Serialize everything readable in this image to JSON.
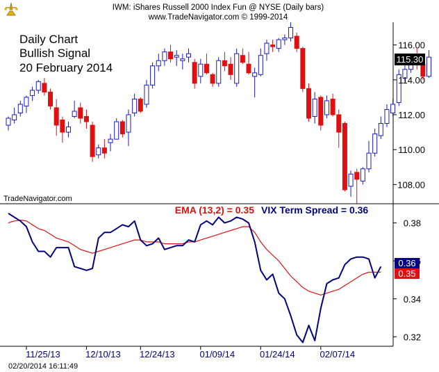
{
  "header": {
    "title": "IWM:  iShares Russell 2000 Index Fun @ NYSE  (Daily bars)",
    "copyright": "www.TradeNavigator.com © 1999-2014"
  },
  "annotations": {
    "line1": "Daily Chart",
    "line2": "Bullish Signal",
    "line3": "20 February 2014",
    "watermark": "TradeNavigator.com",
    "timestamp": "02/20/2014 16:11:49"
  },
  "indicator_labels": {
    "ema": "EMA (13,2) = 0.35",
    "vix": "VIX Term Spread = 0.36"
  },
  "colors": {
    "up": "#1a1acc",
    "down": "#dd1111",
    "vix_line": "#000080",
    "ema_line": "#dd1111",
    "last_price_box": "#000000"
  },
  "chart_data": [
    {
      "type": "candlestick",
      "title": "IWM:  iShares Russell 2000 Index Fun @ NYSE  (Daily bars)",
      "ylim": [
        106.9,
        117.3
      ],
      "y_ticks": [
        108.0,
        110.0,
        112.0,
        114.0,
        116.0
      ],
      "y_tick_labels": [
        "108.00",
        "110.00",
        "112.00",
        "114.00",
        "116.00"
      ],
      "last_value": 115.3,
      "last_value_label": "115.30",
      "candles": [
        {
          "o": 111.4,
          "h": 111.9,
          "l": 111.1,
          "c": 111.8
        },
        {
          "o": 111.7,
          "h": 112.4,
          "l": 111.5,
          "c": 112.0
        },
        {
          "o": 112.1,
          "h": 112.8,
          "l": 111.9,
          "c": 112.6
        },
        {
          "o": 112.5,
          "h": 113.1,
          "l": 112.1,
          "c": 113.0
        },
        {
          "o": 113.1,
          "h": 113.6,
          "l": 112.8,
          "c": 113.4
        },
        {
          "o": 113.4,
          "h": 114.0,
          "l": 113.2,
          "c": 113.9
        },
        {
          "o": 113.8,
          "h": 114.1,
          "l": 113.1,
          "c": 113.3
        },
        {
          "o": 113.3,
          "h": 113.5,
          "l": 112.3,
          "c": 112.5
        },
        {
          "o": 112.4,
          "h": 112.9,
          "l": 110.8,
          "c": 111.4
        },
        {
          "o": 111.7,
          "h": 111.9,
          "l": 110.4,
          "c": 111.0
        },
        {
          "o": 111.0,
          "h": 111.6,
          "l": 110.7,
          "c": 111.3
        },
        {
          "o": 111.9,
          "h": 112.8,
          "l": 111.8,
          "c": 112.2
        },
        {
          "o": 112.4,
          "h": 112.7,
          "l": 111.5,
          "c": 111.8
        },
        {
          "o": 111.9,
          "h": 112.3,
          "l": 111.2,
          "c": 111.6
        },
        {
          "o": 111.4,
          "h": 111.6,
          "l": 109.3,
          "c": 109.6
        },
        {
          "o": 109.7,
          "h": 110.3,
          "l": 109.5,
          "c": 110.1
        },
        {
          "o": 110.1,
          "h": 110.6,
          "l": 109.5,
          "c": 109.8
        },
        {
          "o": 110.4,
          "h": 110.9,
          "l": 109.9,
          "c": 110.6
        },
        {
          "o": 110.6,
          "h": 111.8,
          "l": 110.6,
          "c": 111.6
        },
        {
          "o": 111.6,
          "h": 111.7,
          "l": 110.7,
          "c": 110.9
        },
        {
          "o": 111.0,
          "h": 112.3,
          "l": 110.2,
          "c": 112.0
        },
        {
          "o": 112.1,
          "h": 113.2,
          "l": 111.9,
          "c": 112.9
        },
        {
          "o": 112.9,
          "h": 113.0,
          "l": 112.1,
          "c": 112.2
        },
        {
          "o": 112.6,
          "h": 114.0,
          "l": 112.4,
          "c": 113.7
        },
        {
          "o": 113.7,
          "h": 115.0,
          "l": 113.5,
          "c": 114.8
        },
        {
          "o": 114.8,
          "h": 115.5,
          "l": 114.5,
          "c": 115.1
        },
        {
          "o": 115.1,
          "h": 115.8,
          "l": 114.8,
          "c": 115.6
        },
        {
          "o": 115.6,
          "h": 116.0,
          "l": 115.0,
          "c": 115.2
        },
        {
          "o": 115.3,
          "h": 115.7,
          "l": 114.8,
          "c": 115.4
        },
        {
          "o": 115.1,
          "h": 115.5,
          "l": 114.6,
          "c": 115.2
        },
        {
          "o": 115.3,
          "h": 115.8,
          "l": 115.0,
          "c": 115.5
        },
        {
          "o": 115.0,
          "h": 115.2,
          "l": 113.5,
          "c": 113.8
        },
        {
          "o": 114.2,
          "h": 115.2,
          "l": 113.8,
          "c": 114.9
        },
        {
          "o": 114.9,
          "h": 115.5,
          "l": 114.3,
          "c": 114.4
        },
        {
          "o": 114.3,
          "h": 114.4,
          "l": 113.6,
          "c": 113.8
        },
        {
          "o": 113.8,
          "h": 115.3,
          "l": 113.6,
          "c": 115.1
        },
        {
          "o": 115.1,
          "h": 115.6,
          "l": 114.5,
          "c": 114.8
        },
        {
          "o": 114.9,
          "h": 115.3,
          "l": 114.0,
          "c": 114.3
        },
        {
          "o": 113.8,
          "h": 115.8,
          "l": 113.6,
          "c": 115.5
        },
        {
          "o": 115.4,
          "h": 115.8,
          "l": 114.9,
          "c": 115.0
        },
        {
          "o": 114.9,
          "h": 115.6,
          "l": 114.3,
          "c": 114.4
        },
        {
          "o": 114.2,
          "h": 114.7,
          "l": 113.0,
          "c": 114.4
        },
        {
          "o": 114.3,
          "h": 115.8,
          "l": 114.2,
          "c": 115.4
        },
        {
          "o": 115.5,
          "h": 116.3,
          "l": 115.1,
          "c": 116.1
        },
        {
          "o": 116.0,
          "h": 116.3,
          "l": 115.6,
          "c": 115.9
        },
        {
          "o": 115.8,
          "h": 116.4,
          "l": 115.6,
          "c": 116.3
        },
        {
          "o": 116.3,
          "h": 116.6,
          "l": 116.0,
          "c": 116.4
        },
        {
          "o": 116.4,
          "h": 117.3,
          "l": 116.2,
          "c": 117.0
        },
        {
          "o": 116.5,
          "h": 116.7,
          "l": 115.6,
          "c": 115.8
        },
        {
          "o": 115.8,
          "h": 115.9,
          "l": 113.3,
          "c": 113.5
        },
        {
          "o": 113.5,
          "h": 113.8,
          "l": 111.6,
          "c": 111.8
        },
        {
          "o": 111.9,
          "h": 113.3,
          "l": 111.5,
          "c": 112.9
        },
        {
          "o": 113.0,
          "h": 113.1,
          "l": 111.1,
          "c": 111.4
        },
        {
          "o": 112.0,
          "h": 113.1,
          "l": 111.8,
          "c": 112.8
        },
        {
          "o": 112.9,
          "h": 113.2,
          "l": 111.9,
          "c": 112.0
        },
        {
          "o": 112.0,
          "h": 112.3,
          "l": 110.1,
          "c": 111.0
        },
        {
          "o": 111.5,
          "h": 111.6,
          "l": 107.6,
          "c": 107.7
        },
        {
          "o": 107.9,
          "h": 108.8,
          "l": 107.3,
          "c": 108.6
        },
        {
          "o": 108.7,
          "h": 108.9,
          "l": 106.9,
          "c": 108.3
        },
        {
          "o": 108.2,
          "h": 109.0,
          "l": 108.0,
          "c": 108.9
        },
        {
          "o": 108.9,
          "h": 110.5,
          "l": 108.7,
          "c": 109.8
        },
        {
          "o": 109.8,
          "h": 111.2,
          "l": 109.6,
          "c": 110.9
        },
        {
          "o": 110.8,
          "h": 111.9,
          "l": 110.6,
          "c": 111.5
        },
        {
          "o": 111.5,
          "h": 112.6,
          "l": 111.3,
          "c": 112.3
        },
        {
          "o": 112.1,
          "h": 112.9,
          "l": 111.9,
          "c": 112.6
        },
        {
          "o": 112.7,
          "h": 114.6,
          "l": 112.5,
          "c": 114.3
        },
        {
          "o": 114.1,
          "h": 114.9,
          "l": 113.9,
          "c": 114.6
        },
        {
          "o": 114.6,
          "h": 115.5,
          "l": 114.4,
          "c": 115.3
        },
        {
          "o": 115.4,
          "h": 115.8,
          "l": 114.6,
          "c": 115.0
        },
        {
          "o": 114.9,
          "h": 115.1,
          "l": 114.0,
          "c": 114.2
        },
        {
          "o": 114.2,
          "h": 115.7,
          "l": 114.1,
          "c": 115.3
        }
      ]
    },
    {
      "type": "line",
      "title": "",
      "ylim": [
        0.315,
        0.389
      ],
      "y_ticks": [
        0.32,
        0.34,
        0.36,
        0.38
      ],
      "y_tick_labels": [
        "0.32",
        "0.34",
        "0.36",
        "0.38"
      ],
      "x_tick_labels": [
        "11/25/13",
        "12/10/13",
        "12/24/13",
        "01/09/14",
        "01/24/14",
        "02/07/14"
      ],
      "x_tick_indices": [
        3,
        13,
        22,
        32,
        42,
        52
      ],
      "series": [
        {
          "name": "VIX Term Spread",
          "last_value_label": "0.36",
          "values": [
            0.385,
            0.383,
            0.381,
            0.378,
            0.37,
            0.365,
            0.365,
            0.362,
            0.367,
            0.367,
            0.367,
            0.357,
            0.356,
            0.355,
            0.356,
            0.372,
            0.375,
            0.375,
            0.377,
            0.379,
            0.378,
            0.381,
            0.371,
            0.368,
            0.369,
            0.372,
            0.366,
            0.367,
            0.368,
            0.368,
            0.371,
            0.37,
            0.379,
            0.381,
            0.379,
            0.383,
            0.38,
            0.381,
            0.383,
            0.382,
            0.38,
            0.37,
            0.355,
            0.35,
            0.353,
            0.343,
            0.34,
            0.331,
            0.321,
            0.317,
            0.326,
            0.318,
            0.335,
            0.348,
            0.35,
            0.351,
            0.358,
            0.361,
            0.362,
            0.362,
            0.361,
            0.351,
            0.357
          ]
        },
        {
          "name": "EMA (13,2)",
          "last_value_label": "0.35",
          "values": [
            0.38,
            0.381,
            0.3815,
            0.381,
            0.379,
            0.377,
            0.376,
            0.374,
            0.372,
            0.371,
            0.37,
            0.368,
            0.366,
            0.365,
            0.364,
            0.365,
            0.366,
            0.367,
            0.368,
            0.369,
            0.37,
            0.371,
            0.371,
            0.37,
            0.37,
            0.37,
            0.369,
            0.369,
            0.369,
            0.369,
            0.37,
            0.37,
            0.371,
            0.372,
            0.373,
            0.374,
            0.375,
            0.376,
            0.377,
            0.378,
            0.378,
            0.375,
            0.37,
            0.366,
            0.363,
            0.36,
            0.356,
            0.352,
            0.349,
            0.346,
            0.344,
            0.343,
            0.342,
            0.343,
            0.344,
            0.345,
            0.347,
            0.349,
            0.351,
            0.353,
            0.354,
            0.354,
            0.354
          ]
        }
      ]
    }
  ]
}
